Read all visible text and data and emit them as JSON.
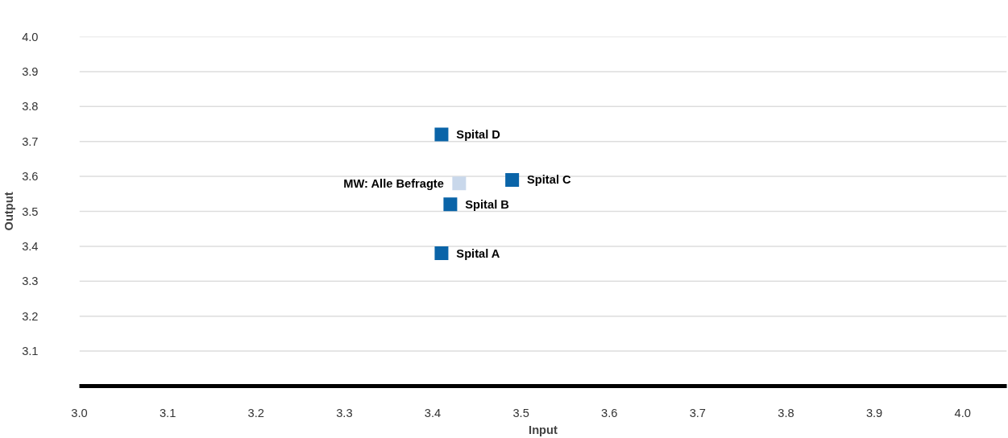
{
  "chart_data": {
    "type": "scatter",
    "xlabel": "Input",
    "ylabel": "Output",
    "xlim": [
      3.0,
      4.05
    ],
    "ylim": [
      3.0,
      4.0
    ],
    "xticks": [
      {
        "value": 3.0,
        "label": "3.0"
      },
      3.1,
      3.2,
      3.3,
      3.4,
      3.5,
      3.6,
      3.7,
      3.8,
      3.9,
      {
        "value": 4.0,
        "label": "4.0"
      }
    ],
    "yticks": [
      3.1,
      3.2,
      3.3,
      3.4,
      3.5,
      3.6,
      3.7,
      3.8,
      3.9,
      {
        "value": 4.0,
        "label": "4.0"
      }
    ],
    "grid": "y",
    "legend": false,
    "marker": "square",
    "series": [
      {
        "name": "Spital D",
        "color": "#0a64a8",
        "x": [
          3.41
        ],
        "values": [
          3.72
        ]
      },
      {
        "name": "MW: Alle Befragte",
        "color": "#c9d8eb",
        "x": [
          3.43
        ],
        "values": [
          3.58
        ]
      },
      {
        "name": "Spital C",
        "color": "#0a64a8",
        "x": [
          3.49
        ],
        "values": [
          3.59
        ]
      },
      {
        "name": "Spital B",
        "color": "#0a64a8",
        "x": [
          3.42
        ],
        "values": [
          3.52
        ]
      },
      {
        "name": "Spital A",
        "color": "#0a64a8",
        "x": [
          3.41
        ],
        "values": [
          3.38
        ]
      }
    ]
  }
}
